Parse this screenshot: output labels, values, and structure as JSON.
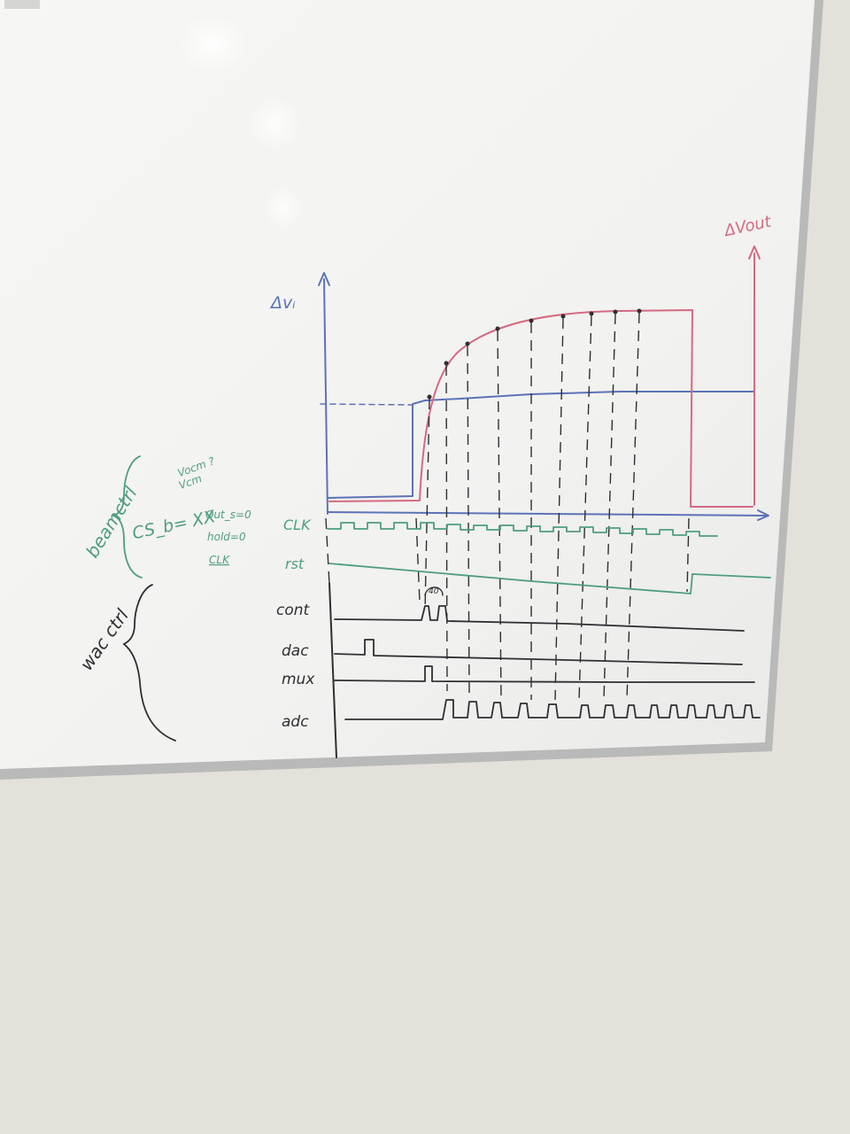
{
  "image": {
    "subject": "whiteboard with hand-drawn timing diagram",
    "board_color": "#f3f3f1",
    "wall_color": "#e3e0da"
  },
  "colors": {
    "blue": "#5d72b8",
    "red": "#d46a82",
    "green": "#4e9e7c",
    "black": "#2f2f33"
  },
  "axes": {
    "left_label": "Δvᵢ",
    "right_label": "ΔVout"
  },
  "bracket_labels": {
    "green": "beamctrl",
    "black": "wac ctrl"
  },
  "notes": {
    "voc_line1": "Vocm ?",
    "voc_line2": "Vcm",
    "cs": "CS_b= XX",
    "out": "Out_s=0",
    "hold": "hold=0",
    "clk": "CLK"
  },
  "signals": {
    "clk": "CLK",
    "rst": "rst",
    "cont": "cont",
    "dac": "dac",
    "mux": "mux",
    "adc": "adc"
  },
  "pulse_note": "40"
}
